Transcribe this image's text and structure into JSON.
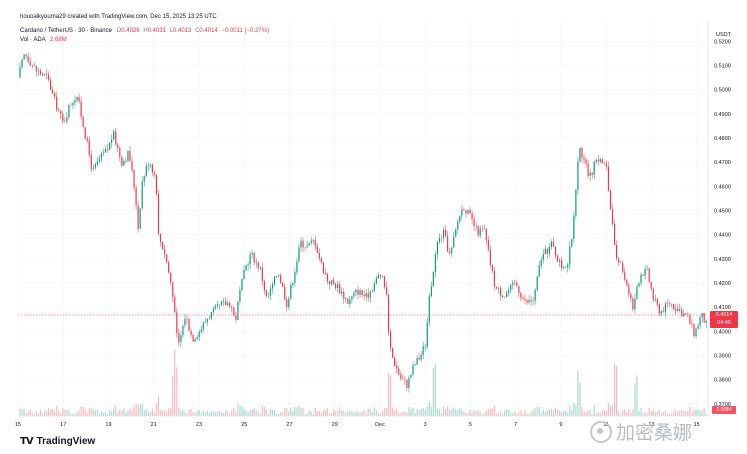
{
  "header": {
    "creator": "houoaikyouma29 created with TradingView.com, Dec 15, 2025 13:25 UTC",
    "symbol": "Cardano / TetherUS · 30 · Binance",
    "open_label": "O",
    "open": "0.4026",
    "high_label": "H",
    "high": "0.4031",
    "low_label": "L",
    "low": "0.4013",
    "close_label": "C",
    "close": "0.4014",
    "change": "−0.0011 (−0.27%)",
    "volume_label": "Vol · ADA",
    "volume": "2.68M"
  },
  "price_tag": {
    "price": "0.4014",
    "countdown": "04:45"
  },
  "volume_tag": "2.68M",
  "logo": "TradingView",
  "watermark": "加密桑娜",
  "colors": {
    "up": "#089981",
    "down": "#f23645",
    "grid": "#f0f3fa",
    "axis_text": "#131722"
  },
  "chart_data": {
    "type": "candlestick",
    "currency": "USDT",
    "y_ticks": [
      "0.5200",
      "0.5100",
      "0.5000",
      "0.4900",
      "0.4800",
      "0.4700",
      "0.4600",
      "0.4500",
      "0.4400",
      "0.4300",
      "0.4200",
      "0.4100",
      "0.4000",
      "0.3900",
      "0.3800",
      "0.3700"
    ],
    "ylim": [
      0.365,
      0.528
    ],
    "x_ticks": [
      "15",
      "17",
      "19",
      "21",
      "23",
      "25",
      "27",
      "29",
      "Dec",
      "3",
      "5",
      "7",
      "9",
      "11",
      "13",
      "15"
    ],
    "x_domain_days": [
      0,
      30.5
    ],
    "grid": true,
    "price_path": [
      [
        0,
        0.505
      ],
      [
        0.3,
        0.515
      ],
      [
        0.8,
        0.508
      ],
      [
        1.3,
        0.505
      ],
      [
        1.6,
        0.496
      ],
      [
        2.0,
        0.486
      ],
      [
        2.3,
        0.494
      ],
      [
        2.6,
        0.498
      ],
      [
        3.0,
        0.48
      ],
      [
        3.3,
        0.466
      ],
      [
        3.6,
        0.471
      ],
      [
        4.0,
        0.476
      ],
      [
        4.2,
        0.482
      ],
      [
        4.6,
        0.47
      ],
      [
        4.9,
        0.474
      ],
      [
        5.2,
        0.456
      ],
      [
        5.3,
        0.442
      ],
      [
        5.5,
        0.463
      ],
      [
        5.8,
        0.471
      ],
      [
        6.1,
        0.463
      ],
      [
        6.2,
        0.44
      ],
      [
        6.5,
        0.432
      ],
      [
        6.8,
        0.418
      ],
      [
        7.0,
        0.4
      ],
      [
        7.1,
        0.394
      ],
      [
        7.4,
        0.407
      ],
      [
        7.7,
        0.397
      ],
      [
        8.0,
        0.4
      ],
      [
        8.4,
        0.406
      ],
      [
        9.0,
        0.411
      ],
      [
        9.4,
        0.412
      ],
      [
        9.6,
        0.404
      ],
      [
        9.8,
        0.416
      ],
      [
        10.1,
        0.428
      ],
      [
        10.3,
        0.432
      ],
      [
        10.7,
        0.426
      ],
      [
        11.0,
        0.413
      ],
      [
        11.5,
        0.425
      ],
      [
        11.9,
        0.411
      ],
      [
        12.2,
        0.424
      ],
      [
        12.5,
        0.437
      ],
      [
        12.8,
        0.435
      ],
      [
        13.1,
        0.438
      ],
      [
        13.4,
        0.428
      ],
      [
        13.7,
        0.421
      ],
      [
        14.1,
        0.419
      ],
      [
        14.6,
        0.412
      ],
      [
        15.0,
        0.417
      ],
      [
        15.4,
        0.414
      ],
      [
        16.0,
        0.424
      ],
      [
        16.3,
        0.416
      ],
      [
        16.4,
        0.394
      ],
      [
        16.6,
        0.388
      ],
      [
        16.9,
        0.381
      ],
      [
        17.2,
        0.378
      ],
      [
        17.5,
        0.386
      ],
      [
        17.8,
        0.39
      ],
      [
        18.0,
        0.395
      ],
      [
        18.2,
        0.415
      ],
      [
        18.5,
        0.436
      ],
      [
        18.8,
        0.441
      ],
      [
        19.1,
        0.431
      ],
      [
        19.5,
        0.448
      ],
      [
        19.7,
        0.452
      ],
      [
        20.0,
        0.447
      ],
      [
        20.3,
        0.441
      ],
      [
        20.6,
        0.442
      ],
      [
        20.9,
        0.427
      ],
      [
        21.1,
        0.418
      ],
      [
        21.5,
        0.415
      ],
      [
        22.0,
        0.42
      ],
      [
        22.4,
        0.412
      ],
      [
        22.8,
        0.413
      ],
      [
        23.1,
        0.43
      ],
      [
        23.6,
        0.436
      ],
      [
        24.0,
        0.427
      ],
      [
        24.3,
        0.428
      ],
      [
        24.5,
        0.44
      ],
      [
        24.7,
        0.465
      ],
      [
        24.8,
        0.479
      ],
      [
        25.0,
        0.47
      ],
      [
        25.3,
        0.464
      ],
      [
        25.6,
        0.472
      ],
      [
        26.0,
        0.468
      ],
      [
        26.2,
        0.45
      ],
      [
        26.4,
        0.432
      ],
      [
        26.7,
        0.426
      ],
      [
        27.0,
        0.417
      ],
      [
        27.2,
        0.409
      ],
      [
        27.5,
        0.424
      ],
      [
        27.8,
        0.425
      ],
      [
        28.1,
        0.413
      ],
      [
        28.4,
        0.408
      ],
      [
        28.8,
        0.412
      ],
      [
        29.2,
        0.409
      ],
      [
        29.6,
        0.406
      ],
      [
        29.9,
        0.399
      ],
      [
        30.2,
        0.407
      ],
      [
        30.5,
        0.4014
      ]
    ],
    "volume_spikes_days": [
      6.9,
      7.0,
      16.4,
      18.4,
      24.8,
      26.4,
      27.3
    ],
    "last_price": 0.4014
  }
}
